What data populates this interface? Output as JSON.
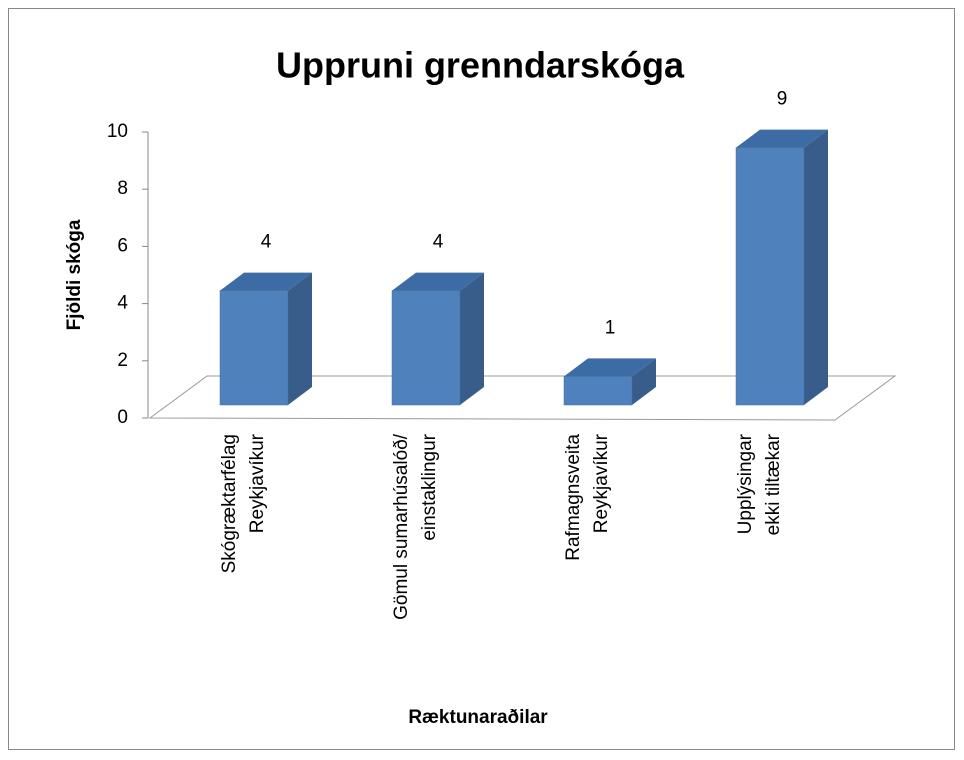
{
  "chart_data": {
    "type": "bar3d",
    "title": "Uppruni grenndarskóga",
    "x_label": "Ræktunaraðilar",
    "y_label": "Fjöldi skóga",
    "categories": [
      [
        "Skógræktarfélag",
        "Reykjavíkur"
      ],
      [
        "Gömul sumarhúsalóð/",
        "einstaklingur"
      ],
      [
        "Rafmagnsveita",
        "Reykjavíkur"
      ],
      [
        "Upplýsingar",
        "ekki tiltækar"
      ]
    ],
    "values": [
      4,
      4,
      1,
      9
    ],
    "color": "#4f81bd",
    "ylim": [
      0,
      10
    ],
    "yticks": [
      0,
      2,
      4,
      6,
      8,
      10
    ]
  }
}
